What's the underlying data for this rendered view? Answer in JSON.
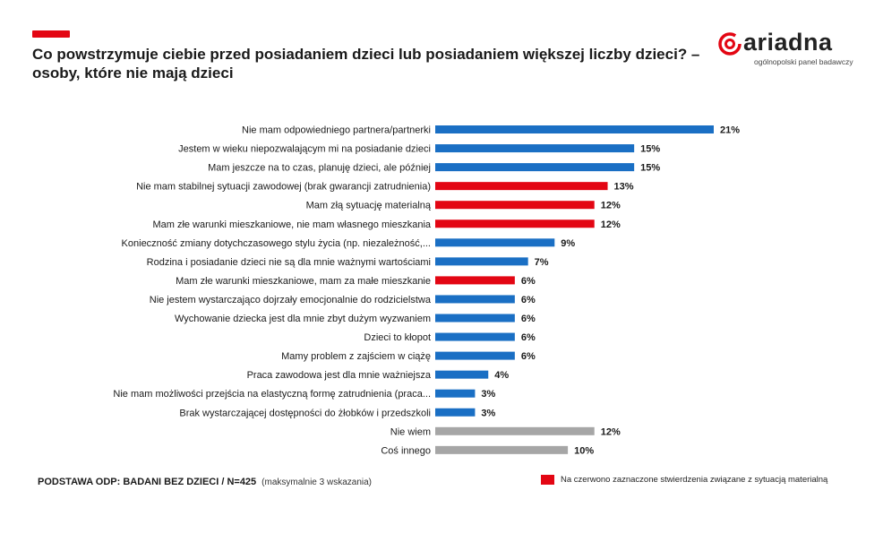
{
  "title": "Co powstrzymuje ciebie przed posiadaniem dzieci lub posiadaniem większej liczby dzieci? – osoby, które nie mają dzieci",
  "logo": {
    "name": "ariadna",
    "tagline": "ogólnopolski panel badawczy",
    "icon": "ariadna-spiral-icon"
  },
  "colors": {
    "accent": "#e30613",
    "blue": "#1a6fc4",
    "red": "#e30613",
    "gray": "#a6a6a6"
  },
  "footer": {
    "base": "PODSTAWA ODP: BADANI BEZ DZIECI / N=425",
    "note": "(maksymalnie 3 wskazania)"
  },
  "legend": {
    "label": "Na czerwono zaznaczone stwierdzenia związane z sytuacją materialną"
  },
  "chart_data": {
    "type": "bar",
    "orientation": "horizontal",
    "unit": "%",
    "xlim": [
      0,
      21
    ],
    "grid": false,
    "categories": [
      "Nie mam odpowiedniego partnera/partnerki",
      "Jestem w wieku niepozwalającym mi na posiadanie dzieci",
      "Mam jeszcze na to czas, planuję dzieci, ale później",
      "Nie mam stabilnej sytuacji zawodowej (brak gwarancji zatrudnienia)",
      "Mam złą sytuację materialną",
      "Mam złe warunki mieszkaniowe, nie mam własnego mieszkania",
      "Konieczność zmiany dotychczasowego stylu życia (np. niezależność,...",
      "Rodzina i posiadanie dzieci nie są dla mnie ważnymi wartościami",
      "Mam złe warunki mieszkaniowe, mam za małe mieszkanie",
      "Nie jestem wystarczająco dojrzały emocjonalnie do rodzicielstwa",
      "Wychowanie dziecka jest dla mnie zbyt dużym wyzwaniem",
      "Dzieci to kłopot",
      "Mamy problem z zajściem w ciążę",
      "Praca zawodowa jest dla mnie ważniejsza",
      "Nie mam możliwości przejścia na elastyczną formę zatrudnienia (praca...",
      "Brak wystarczającej dostępności do żłobków i przedszkoli",
      "Nie wiem",
      "Coś innego"
    ],
    "values": [
      21,
      15,
      15,
      13,
      12,
      12,
      9,
      7,
      6,
      6,
      6,
      6,
      6,
      4,
      3,
      3,
      12,
      10
    ],
    "value_labels": [
      "21%",
      "15%",
      "15%",
      "13%",
      "12%",
      "12%",
      "9%",
      "7%",
      "6%",
      "6%",
      "6%",
      "6%",
      "6%",
      "4%",
      "3%",
      "3%",
      "12%",
      "10%"
    ],
    "bar_colors": [
      "blue",
      "blue",
      "blue",
      "red",
      "red",
      "red",
      "blue",
      "blue",
      "red",
      "blue",
      "blue",
      "blue",
      "blue",
      "blue",
      "blue",
      "blue",
      "gray",
      "gray"
    ]
  }
}
